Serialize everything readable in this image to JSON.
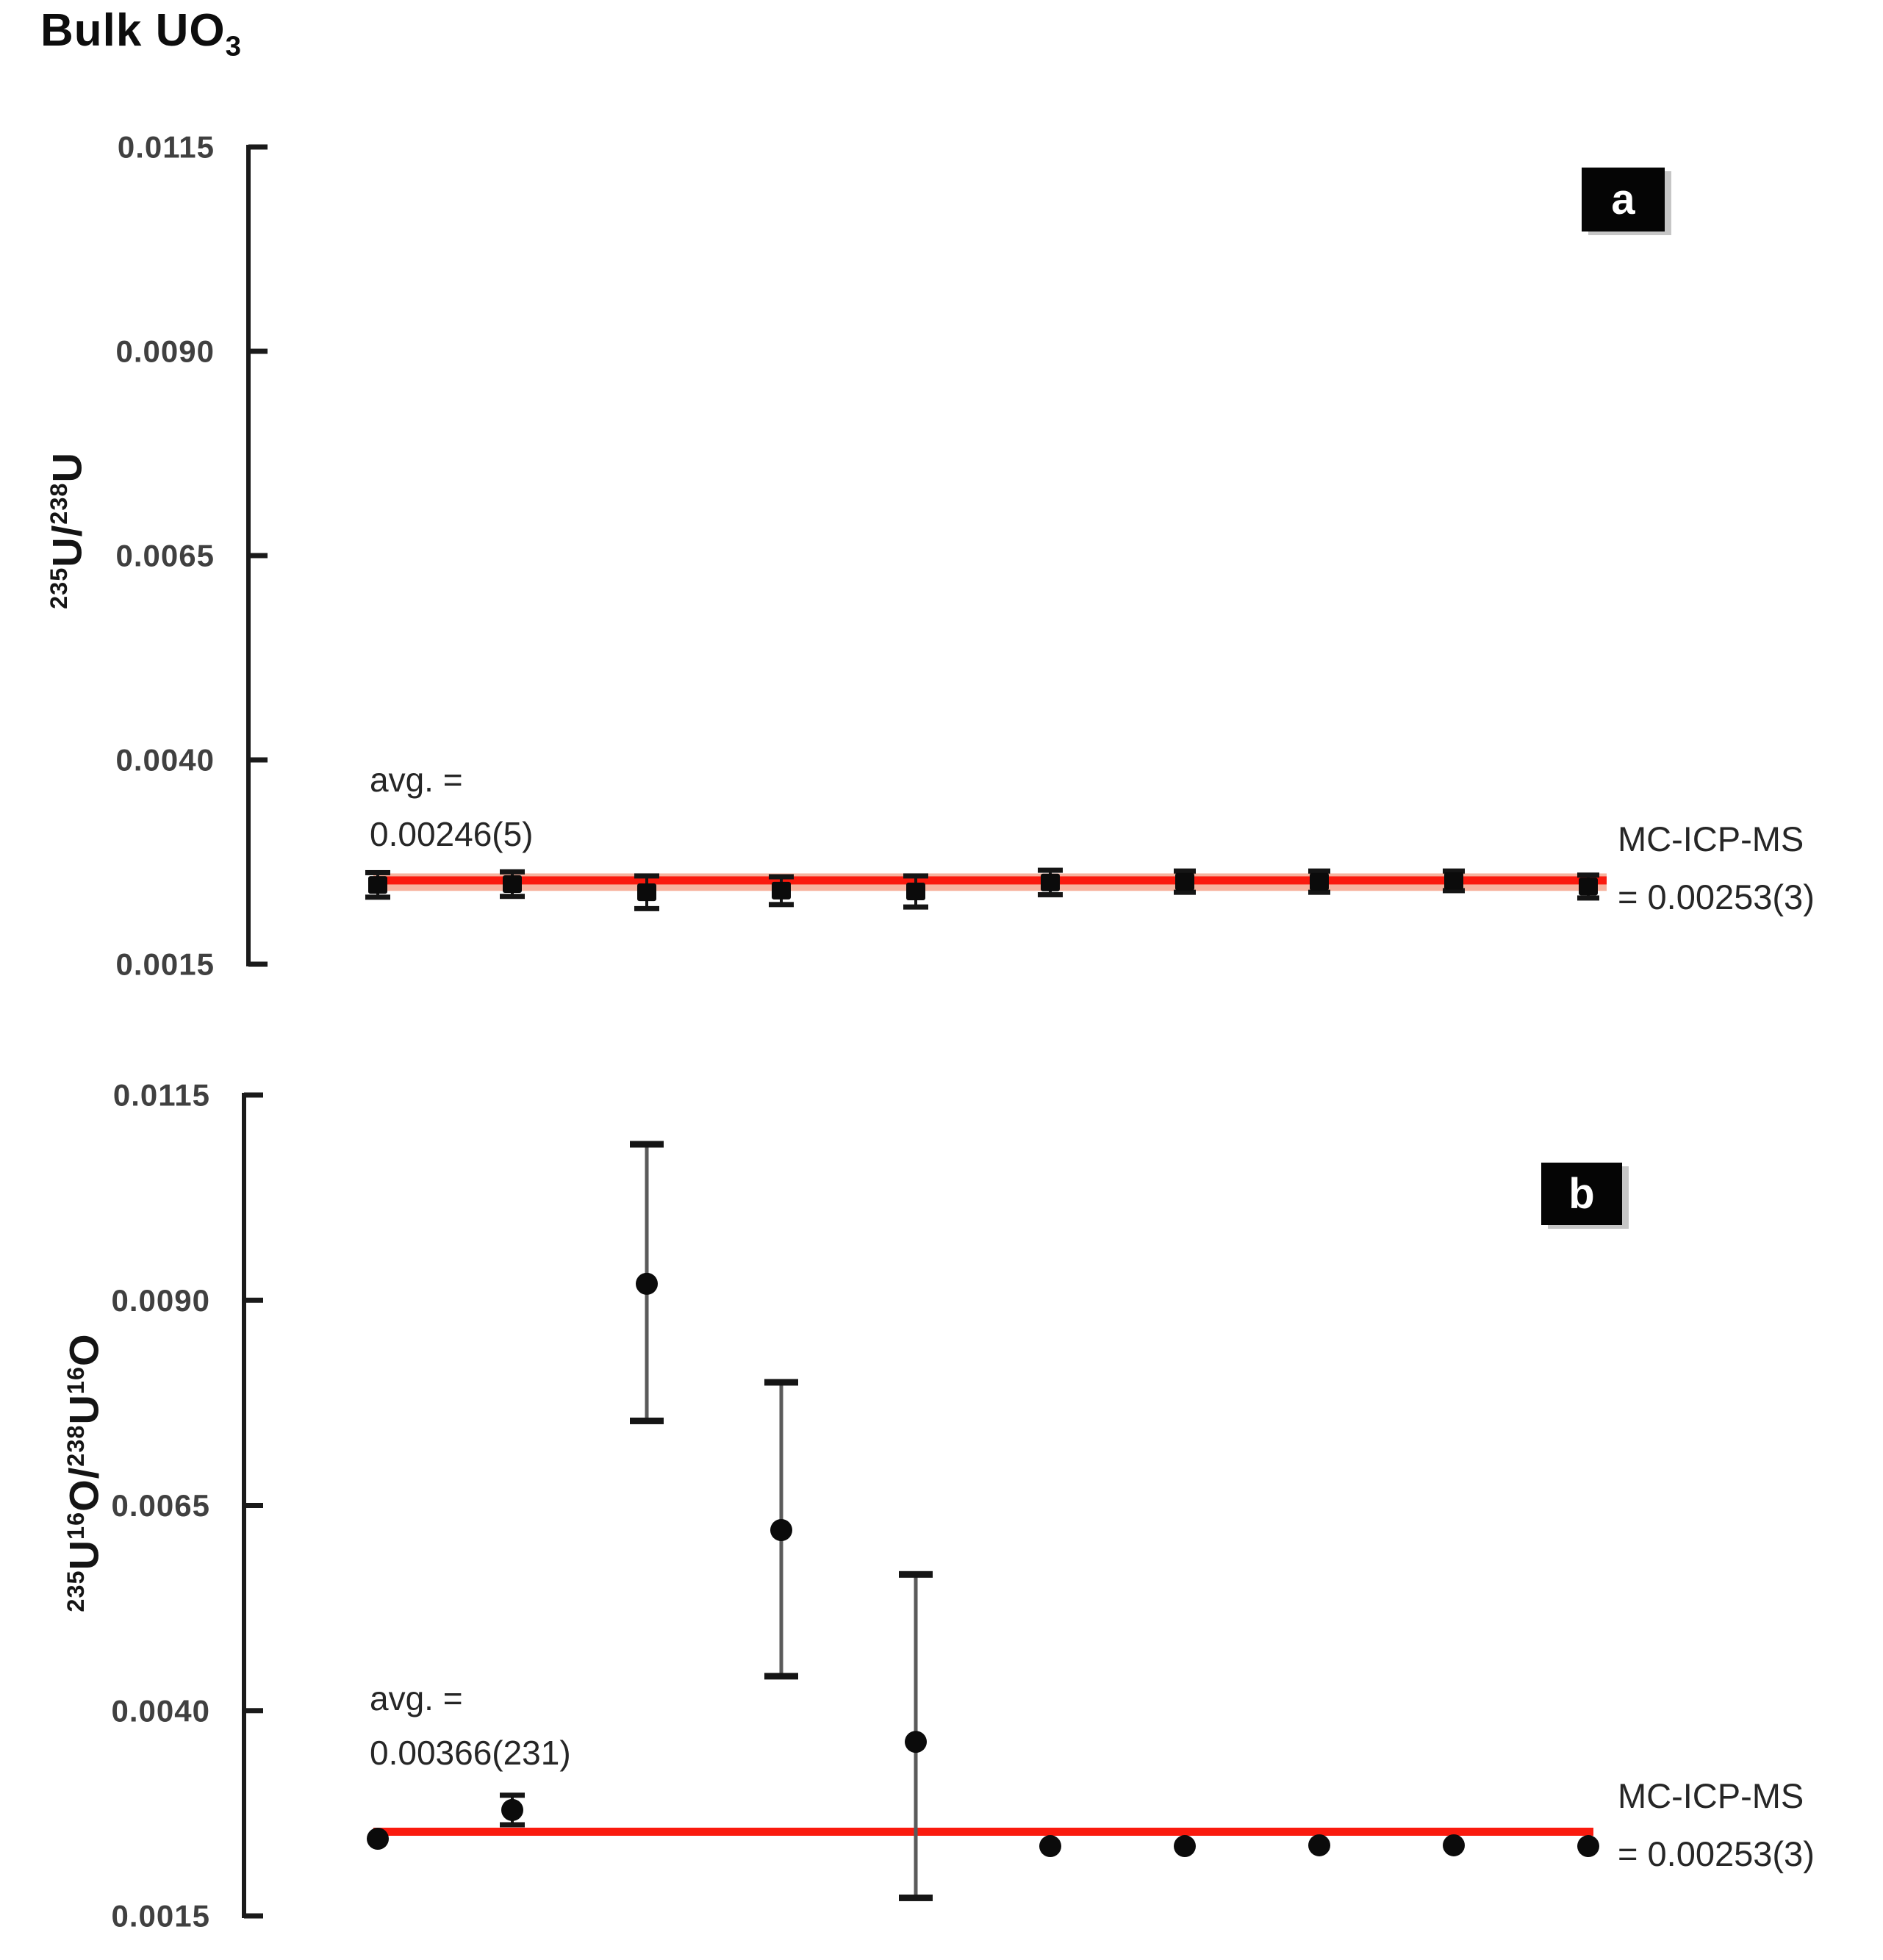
{
  "title_main": "Bulk UO",
  "title_sub": "3",
  "colors": {
    "axis": "#1a1a1a",
    "tick_label": "#404040",
    "ref_line": "#fa1a0e",
    "ref_band": "#f7b29e",
    "marker": "#0b0b0b",
    "error_bar_gray": "#5a5a5a",
    "error_bar_cap": "#151515",
    "badge_bg": "#050505",
    "badge_text": "#ffffff"
  },
  "panels": [
    {
      "badge": "a",
      "avg_line1": "avg. =",
      "avg_line2": "0.00246(5)",
      "ref_line1": "MC-ICP-MS",
      "ref_line2": "= 0.00253(3)",
      "ylabel_segments": [
        {
          "t": "235",
          "sup": true
        },
        {
          "t": "U",
          "sup": false
        },
        {
          "t": "/",
          "sup": false
        },
        {
          "t": "238",
          "sup": true
        },
        {
          "t": "U",
          "sup": false
        }
      ]
    },
    {
      "badge": "b",
      "avg_line1": "avg. =",
      "avg_line2": "0.00366(231)",
      "ref_line1": "MC-ICP-MS",
      "ref_line2": "= 0.00253(3)",
      "ylabel_segments": [
        {
          "t": "235",
          "sup": true
        },
        {
          "t": "U",
          "sup": false
        },
        {
          "t": "16",
          "sup": true
        },
        {
          "t": "O",
          "sup": false
        },
        {
          "t": "/",
          "sup": false
        },
        {
          "t": "238",
          "sup": true
        },
        {
          "t": "U",
          "sup": false
        },
        {
          "t": "16",
          "sup": true
        },
        {
          "t": "O",
          "sup": false
        }
      ]
    }
  ],
  "chart_data": [
    {
      "type": "scatter",
      "panel": "a",
      "ylabel": "235U/238U",
      "ylim": [
        0.0015,
        0.0115
      ],
      "yticks": [
        "0.0115",
        "0.0090",
        "0.0065",
        "0.0040",
        "0.0015"
      ],
      "x": [
        1,
        2,
        3,
        4,
        5,
        6,
        7,
        8,
        9,
        10
      ],
      "values": [
        0.00247,
        0.00248,
        0.00238,
        0.0024,
        0.00239,
        0.0025,
        0.00251,
        0.00251,
        0.00252,
        0.00245
      ],
      "err_plus": [
        0.00015,
        0.00015,
        0.0002,
        0.00017,
        0.00019,
        0.00015,
        0.00013,
        0.00013,
        0.00012,
        0.00014
      ],
      "err_minus": [
        0.00015,
        0.00015,
        0.0002,
        0.00017,
        0.00019,
        0.00015,
        0.00013,
        0.00013,
        0.00012,
        0.00014
      ],
      "avg": {
        "label": "avg. = 0.00246(5)",
        "value": 0.00246
      },
      "ref_line": {
        "label": "MC-ICP-MS = 0.00253(3)",
        "value": 0.00253
      },
      "marker": "square",
      "grid": false,
      "legend": "none"
    },
    {
      "type": "scatter",
      "panel": "b",
      "ylabel": "235U16O/238U16O",
      "ylim": [
        0.0015,
        0.0115
      ],
      "yticks": [
        "0.0115",
        "0.0090",
        "0.0065",
        "0.0040",
        "0.0015"
      ],
      "x": [
        1,
        2,
        3,
        4,
        5,
        6,
        7,
        8,
        9,
        10
      ],
      "values": [
        0.00244,
        0.00279,
        0.0092,
        0.0062,
        0.00362,
        0.00235,
        0.00235,
        0.00236,
        0.00236,
        0.00235
      ],
      "err_plus": [
        6e-05,
        0.00018,
        0.0017,
        0.0018,
        0.00204,
        6e-05,
        6e-05,
        6e-05,
        6e-05,
        6e-05
      ],
      "err_minus": [
        6e-05,
        0.00018,
        0.00167,
        0.00178,
        0.0019,
        6e-05,
        6e-05,
        6e-05,
        6e-05,
        6e-05
      ],
      "avg": {
        "label": "avg. = 0.00366(231)",
        "value": 0.00366
      },
      "ref_line": {
        "label": "MC-ICP-MS = 0.00253(3)",
        "value": 0.00253
      },
      "marker": "circle",
      "grid": false,
      "legend": "none"
    }
  ]
}
